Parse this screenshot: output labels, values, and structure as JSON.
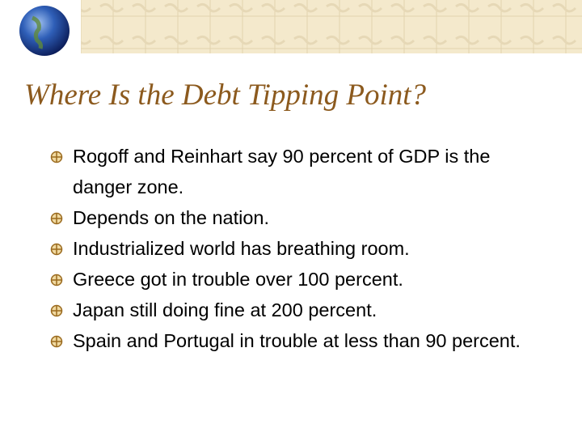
{
  "title": "Where Is the Debt Tipping Point?",
  "bullets": [
    "Rogoff and Reinhart say 90 percent of GDP is the danger zone.",
    "Depends on the nation.",
    "Industrialized world has breathing room.",
    "Greece got in trouble over 100 percent.",
    "Japan still doing fine at 200 percent.",
    "Spain and Portugal in trouble at less than 90 percent."
  ]
}
